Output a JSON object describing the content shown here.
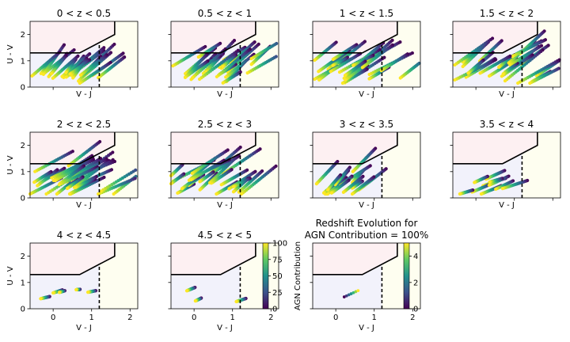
{
  "chart_data": {
    "type": "scatter",
    "xlabel": "V - J",
    "ylabel": "U - V",
    "xlim": [
      -0.6,
      2.2
    ],
    "ylim": [
      0,
      2.5
    ],
    "xticks": [
      "0",
      "1",
      "2"
    ],
    "yticks": [
      "0",
      "1",
      "2"
    ],
    "uvj_boundary": {
      "vertices": [
        [
          -0.6,
          1.3
        ],
        [
          0.69,
          1.3
        ],
        [
          1.6,
          2.0
        ],
        [
          1.6,
          2.5
        ]
      ],
      "vertical_dashed_x": 1.2
    },
    "panels": [
      {
        "title": "0 < z < 0.5",
        "xlabel": "V - J",
        "ylabel": "U - V",
        "cluster": "z0"
      },
      {
        "title": "0.5 < z < 1",
        "xlabel": "V - J",
        "ylabel": "",
        "cluster": "z1"
      },
      {
        "title": "1 < z < 1.5",
        "xlabel": "V - J",
        "ylabel": "",
        "cluster": "z2"
      },
      {
        "title": "1.5 < z < 2",
        "xlabel": "V - J",
        "ylabel": "",
        "cluster": "z3"
      },
      {
        "title": "2 < z < 2.5",
        "xlabel": "V - J",
        "ylabel": "U - V",
        "cluster": "z4"
      },
      {
        "title": "2.5 < z < 3",
        "xlabel": "V - J",
        "ylabel": "",
        "cluster": "z5"
      },
      {
        "title": "3 < z < 3.5",
        "xlabel": "V - J",
        "ylabel": "",
        "cluster": "z6"
      },
      {
        "title": "3.5 < z < 4",
        "xlabel": "V - J",
        "ylabel": "",
        "cluster": "z7"
      },
      {
        "title": "4 < z < 4.5",
        "xlabel": "V - J",
        "ylabel": "U - V",
        "cluster": "z8"
      },
      {
        "title": "4.5 < z < 5",
        "xlabel": "V - J",
        "ylabel": "",
        "cluster": "z9"
      },
      {
        "title": "Redshift Evolution for\nAGN Contribution = 100%",
        "xlabel": "V - J",
        "ylabel": "",
        "cluster": "evo"
      }
    ],
    "colorbar_agn": {
      "label": "AGN Contribution",
      "ticks": [
        "0",
        "25",
        "50",
        "75",
        "100"
      ],
      "range": [
        0,
        100
      ],
      "colormap": "viridis"
    },
    "colorbar_z": {
      "label": "",
      "ticks": [
        "0",
        "2",
        "4"
      ],
      "range": [
        0,
        5
      ],
      "colormap": "viridis"
    },
    "colors": {
      "quiescent_region": "#fdf0f2",
      "dusty_region": "#fefef0",
      "starforming_region": "#f2f2fb",
      "boundary": "#000000",
      "dot_low": "#440154",
      "dot_high": "#fde725"
    }
  }
}
